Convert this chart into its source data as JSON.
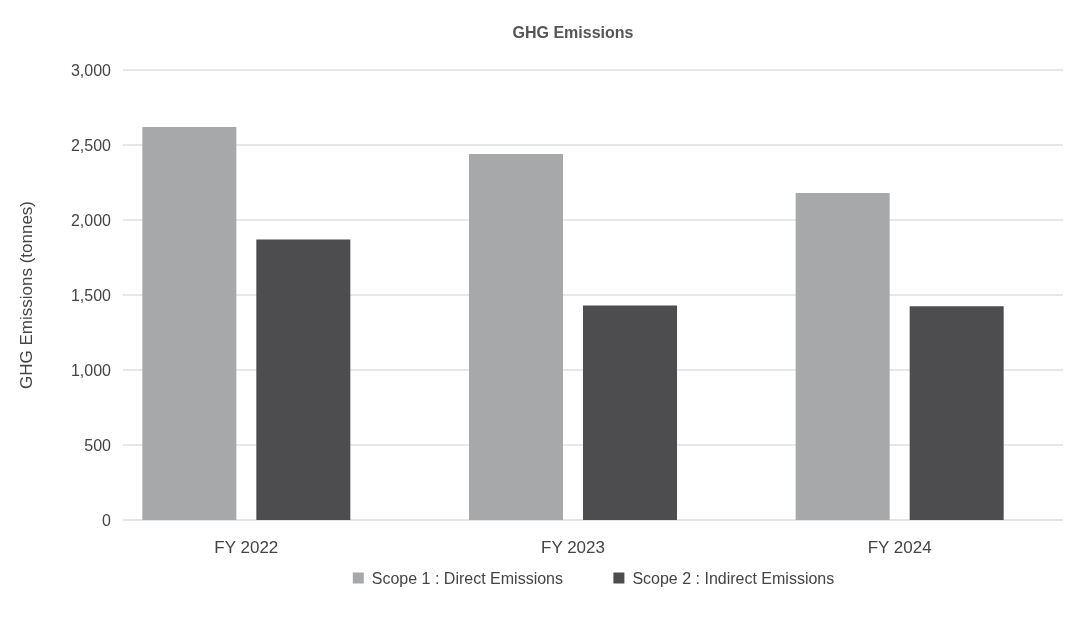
{
  "chart_data": {
    "type": "bar",
    "title": "GHG Emissions",
    "ylabel": "GHG Emissions (tonnes)",
    "categories": [
      "FY 2022",
      "FY 2023",
      "FY 2024"
    ],
    "series": [
      {
        "name": "Scope 1 : Direct Emissions",
        "color": "#a7a8aa",
        "values": [
          2620,
          2440,
          2180
        ]
      },
      {
        "name": "Scope 2 : Indirect Emissions",
        "color": "#4d4d4f",
        "values": [
          1870,
          1430,
          1425
        ]
      }
    ],
    "ylim": [
      0,
      3000
    ],
    "yticks": [
      {
        "value": 0,
        "label": "0"
      },
      {
        "value": 500,
        "label": "500"
      },
      {
        "value": 1000,
        "label": "1,000"
      },
      {
        "value": 1500,
        "label": "1,500"
      },
      {
        "value": 2000,
        "label": "2,000"
      },
      {
        "value": 2500,
        "label": "2,500"
      },
      {
        "value": 3000,
        "label": "3,000"
      }
    ],
    "grid": "y",
    "legend": "bottom"
  }
}
